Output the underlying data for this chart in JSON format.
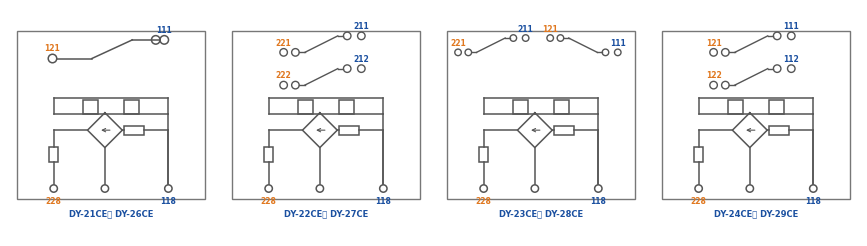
{
  "panels": [
    {
      "label": "DY-21CE， DY-26CE",
      "contacts": [
        {
          "type": "single",
          "rows": [
            {
              "left": "121",
              "right": "111"
            }
          ]
        }
      ]
    },
    {
      "label": "DY-22CE， DY-27CE",
      "contacts": [
        {
          "type": "stacked",
          "rows": [
            {
              "left": "221",
              "right": "211"
            },
            {
              "left": "222",
              "right": "212"
            }
          ]
        }
      ]
    },
    {
      "label": "DY-23CE， DY-28CE",
      "contacts": [
        {
          "type": "side_by_side",
          "rows": [
            {
              "left": "221",
              "right": "211",
              "rev": false
            },
            {
              "left": "121",
              "right": "111",
              "rev": true
            }
          ]
        }
      ]
    },
    {
      "label": "DY-24CE， DY-29CE",
      "contacts": [
        {
          "type": "stacked",
          "rows": [
            {
              "left": "121",
              "right": "111"
            },
            {
              "left": "122",
              "right": "112"
            }
          ]
        }
      ]
    }
  ],
  "orange": "#E07820",
  "blue": "#1B50A0",
  "lc": "#555555",
  "gray": "#777777",
  "bg": "#ffffff"
}
